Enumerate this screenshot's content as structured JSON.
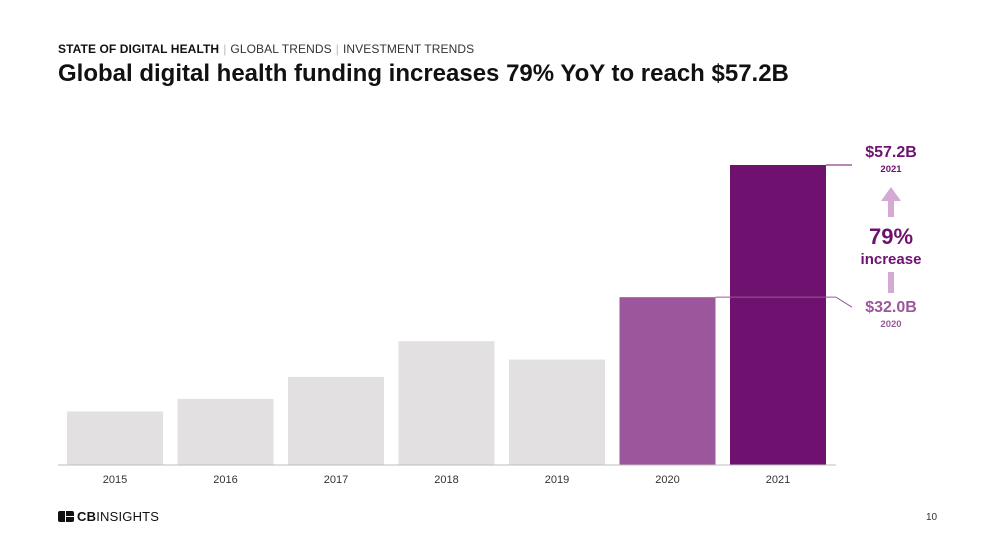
{
  "header": {
    "breadcrumb": [
      "STATE OF DIGITAL HEALTH",
      "GLOBAL TRENDS",
      "INVESTMENT TRENDS"
    ],
    "title": "Global digital health funding increases 79% YoY to reach $57.2B"
  },
  "colors": {
    "bar_default": "#e2e0e1",
    "bar_2020": "#9c579c",
    "bar_2021": "#6f126f",
    "annotation_dark": "#6f126f",
    "annotation_mid": "#9c579c",
    "arrow": "#d4aad4"
  },
  "chart_data": {
    "type": "bar",
    "categories": [
      "2015",
      "2016",
      "2017",
      "2018",
      "2019",
      "2020",
      "2021"
    ],
    "values": [
      10.2,
      12.6,
      16.8,
      23.6,
      20.1,
      32.0,
      57.2
    ],
    "unit": "$B",
    "ylim": [
      0,
      57.2
    ],
    "grid": false,
    "annotations": {
      "top_value": "$57.2B",
      "top_year": "2021",
      "bottom_value": "$32.0B",
      "bottom_year": "2020",
      "pct": "79%",
      "pct_label": "increase"
    }
  },
  "footer": {
    "logo_bold": "CB",
    "logo_regular": "INSIGHTS",
    "page_number": "10"
  }
}
